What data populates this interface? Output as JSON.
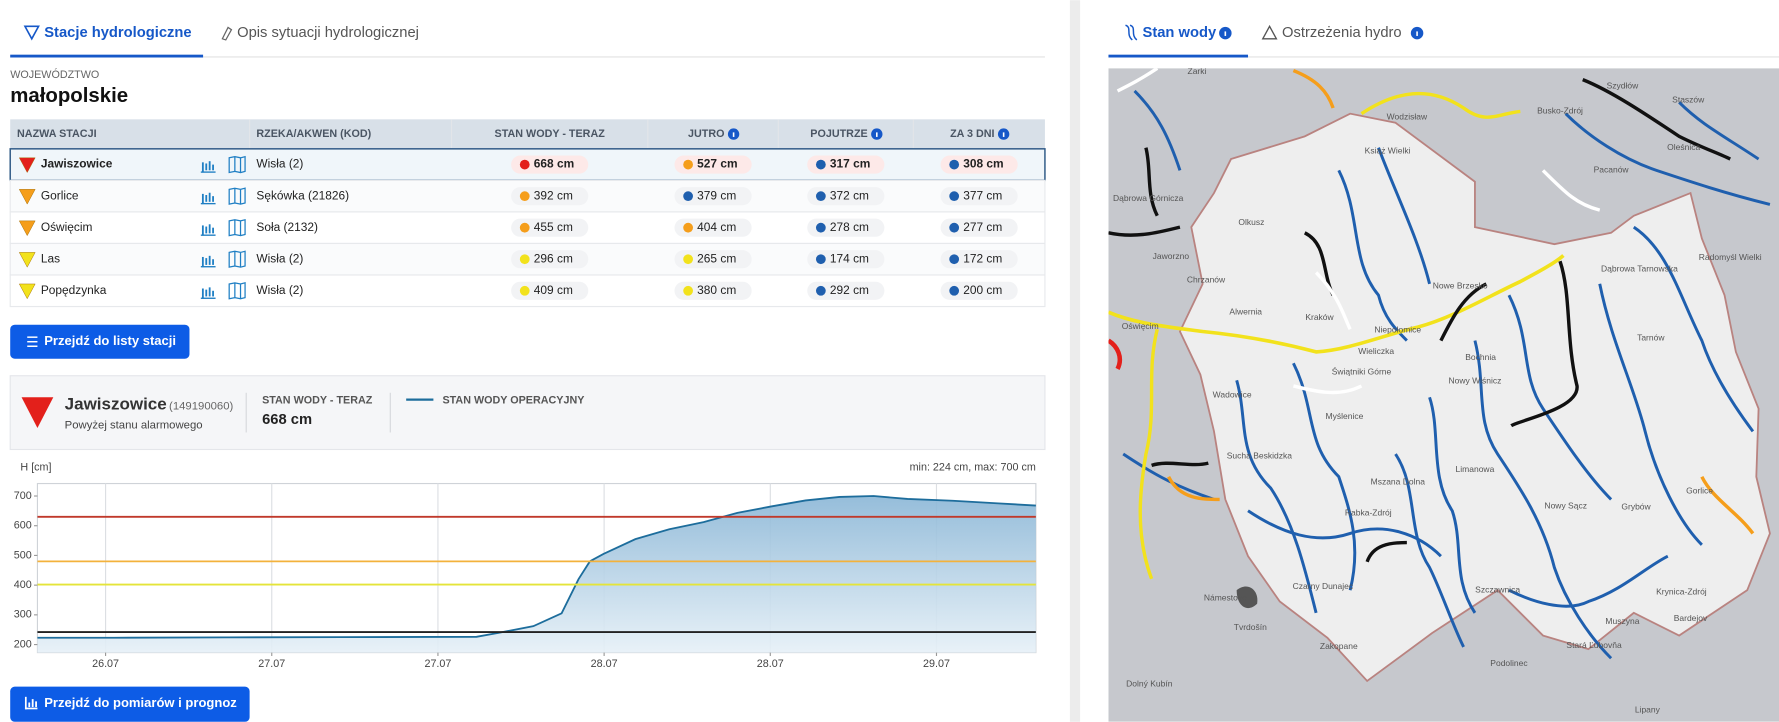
{
  "tabs_left": [
    {
      "label": "Stacje hydrologiczne",
      "active": true
    },
    {
      "label": "Opis sytuacji hydrologicznej",
      "active": false
    }
  ],
  "tabs_right": [
    {
      "label": "Stan wody",
      "active": true
    },
    {
      "label": "Ostrzeżenia hydro",
      "active": false
    }
  ],
  "region": {
    "caption": "WOJEWÓDZTWO",
    "name": "małopolskie"
  },
  "table": {
    "headers": [
      "NAZWA STACJI",
      "RZEKA/AKWEN (KOD)",
      "STAN WODY - TERAZ",
      "JUTRO",
      "POJUTRZE",
      "ZA 3 DNI"
    ],
    "rows": [
      {
        "name": "Jawiszowice",
        "status_color": "#e3201b",
        "river": "Wisła (2)",
        "levels": [
          {
            "text": "668 cm",
            "color": "#e3201b"
          },
          {
            "text": "527 cm",
            "color": "#f59e1b"
          },
          {
            "text": "317 cm",
            "color": "#1f5fae"
          },
          {
            "text": "308 cm",
            "color": "#1f5fae"
          }
        ]
      },
      {
        "name": "Gorlice",
        "status_color": "#f59e1b",
        "river": "Sękówka (21826)",
        "levels": [
          {
            "text": "392 cm",
            "color": "#f59e1b"
          },
          {
            "text": "379 cm",
            "color": "#1f5fae"
          },
          {
            "text": "372 cm",
            "color": "#1f5fae"
          },
          {
            "text": "377 cm",
            "color": "#1f5fae"
          }
        ]
      },
      {
        "name": "Oświęcim",
        "status_color": "#f59e1b",
        "river": "Soła (2132)",
        "levels": [
          {
            "text": "455 cm",
            "color": "#f59e1b"
          },
          {
            "text": "404 cm",
            "color": "#f59e1b"
          },
          {
            "text": "278 cm",
            "color": "#1f5fae"
          },
          {
            "text": "277 cm",
            "color": "#1f5fae"
          }
        ]
      },
      {
        "name": "Las",
        "status_color": "#f2e21c",
        "river": "Wisła (2)",
        "levels": [
          {
            "text": "296 cm",
            "color": "#f2e21c"
          },
          {
            "text": "265 cm",
            "color": "#f2e21c"
          },
          {
            "text": "174 cm",
            "color": "#1f5fae"
          },
          {
            "text": "172 cm",
            "color": "#1f5fae"
          }
        ]
      },
      {
        "name": "Popędzynka",
        "status_color": "#f2e21c",
        "river": "Wisła (2)",
        "levels": [
          {
            "text": "409 cm",
            "color": "#f2e21c"
          },
          {
            "text": "380 cm",
            "color": "#f2e21c"
          },
          {
            "text": "292 cm",
            "color": "#1f5fae"
          },
          {
            "text": "200 cm",
            "color": "#1f5fae"
          }
        ]
      }
    ]
  },
  "button_list": "Przejdź do listy stacji",
  "station": {
    "name": "Jawiszowice",
    "code": "(149190060)",
    "status": "Powyżej stanu alarmowego",
    "now_caption": "STAN WODY - TERAZ",
    "now_value": "668 cm"
  },
  "chart_data": {
    "type": "area",
    "y_label": "H [cm]",
    "annotation": "min: 224 cm, max: 700 cm",
    "x": [
      26.295,
      26.524,
      26.865,
      27.207,
      27.616,
      27.684,
      27.787,
      27.872,
      27.923,
      27.957,
      27.998,
      28.094,
      28.196,
      28.299,
      28.401,
      28.503,
      28.606,
      28.708,
      28.811,
      28.913,
      29.049,
      29.186,
      29.299
    ],
    "series": [
      {
        "name": "STAN WODY OPERACYJNY",
        "color": "#1d6d9c",
        "values": [
          223,
          223,
          224,
          225,
          226,
          240,
          262,
          305,
          420,
          480,
          505,
          555,
          588,
          612,
          643,
          665,
          685,
          697,
          700,
          690,
          684,
          675,
          668
        ]
      }
    ],
    "thresholds": [
      {
        "value": 630,
        "color": "#c0392b"
      },
      {
        "value": 480,
        "color": "#f3b23c"
      },
      {
        "value": 402,
        "color": "#e4e43a"
      },
      {
        "value": 242,
        "color": "#222222"
      }
    ],
    "xlim": [
      26.295,
      29.299
    ],
    "xticks": [
      {
        "value": 26.5,
        "label": "26.07"
      },
      {
        "value": 27,
        "label": "27.07"
      },
      {
        "value": 27.5,
        "label": "27.07"
      },
      {
        "value": 28,
        "label": "28.07"
      },
      {
        "value": 28.5,
        "label": "28.07"
      },
      {
        "value": 29,
        "label": "29.07"
      }
    ],
    "ylim": [
      173,
      742
    ],
    "yticks": [
      200,
      300,
      400,
      500,
      600,
      700
    ],
    "grid": true
  },
  "button_chart": "Przejdź do pomiarów i prognoz",
  "map": {
    "labels": [
      "Żarki",
      "Szydłów",
      "Busko-Zdrój",
      "Staszów",
      "Oleśnica",
      "Pacanów",
      "Wodzisław",
      "Książ Wielki",
      "Dąbrowa Górnicza",
      "Olkusz",
      "Jaworzno",
      "Chrzanów",
      "Alwernia",
      "Oświęcim",
      "Kraków",
      "Niepołomice",
      "Nowe Brzesko",
      "Wieliczka",
      "Świątniki Górne",
      "Bochnia",
      "Nowy Wiśnicz",
      "Dąbrowa Tarnowska",
      "Radomyśl Wielki",
      "Tarnów",
      "Wadowice",
      "Myślenice",
      "Sucha Beskidzka",
      "Limanowa",
      "Mszana Dolna",
      "Rabka-Zdrój",
      "Nowy Sącz",
      "Grybów",
      "Gorlice",
      "Czarny Dunajec",
      "Szczawnica",
      "Krynica-Zdrój",
      "Muszyna",
      "Zakopane",
      "Námestovo",
      "Tvrdošín",
      "Podolinec",
      "Stará Ľubovňa",
      "Bardejov",
      "Lipany",
      "Dolný Kubín"
    ]
  }
}
